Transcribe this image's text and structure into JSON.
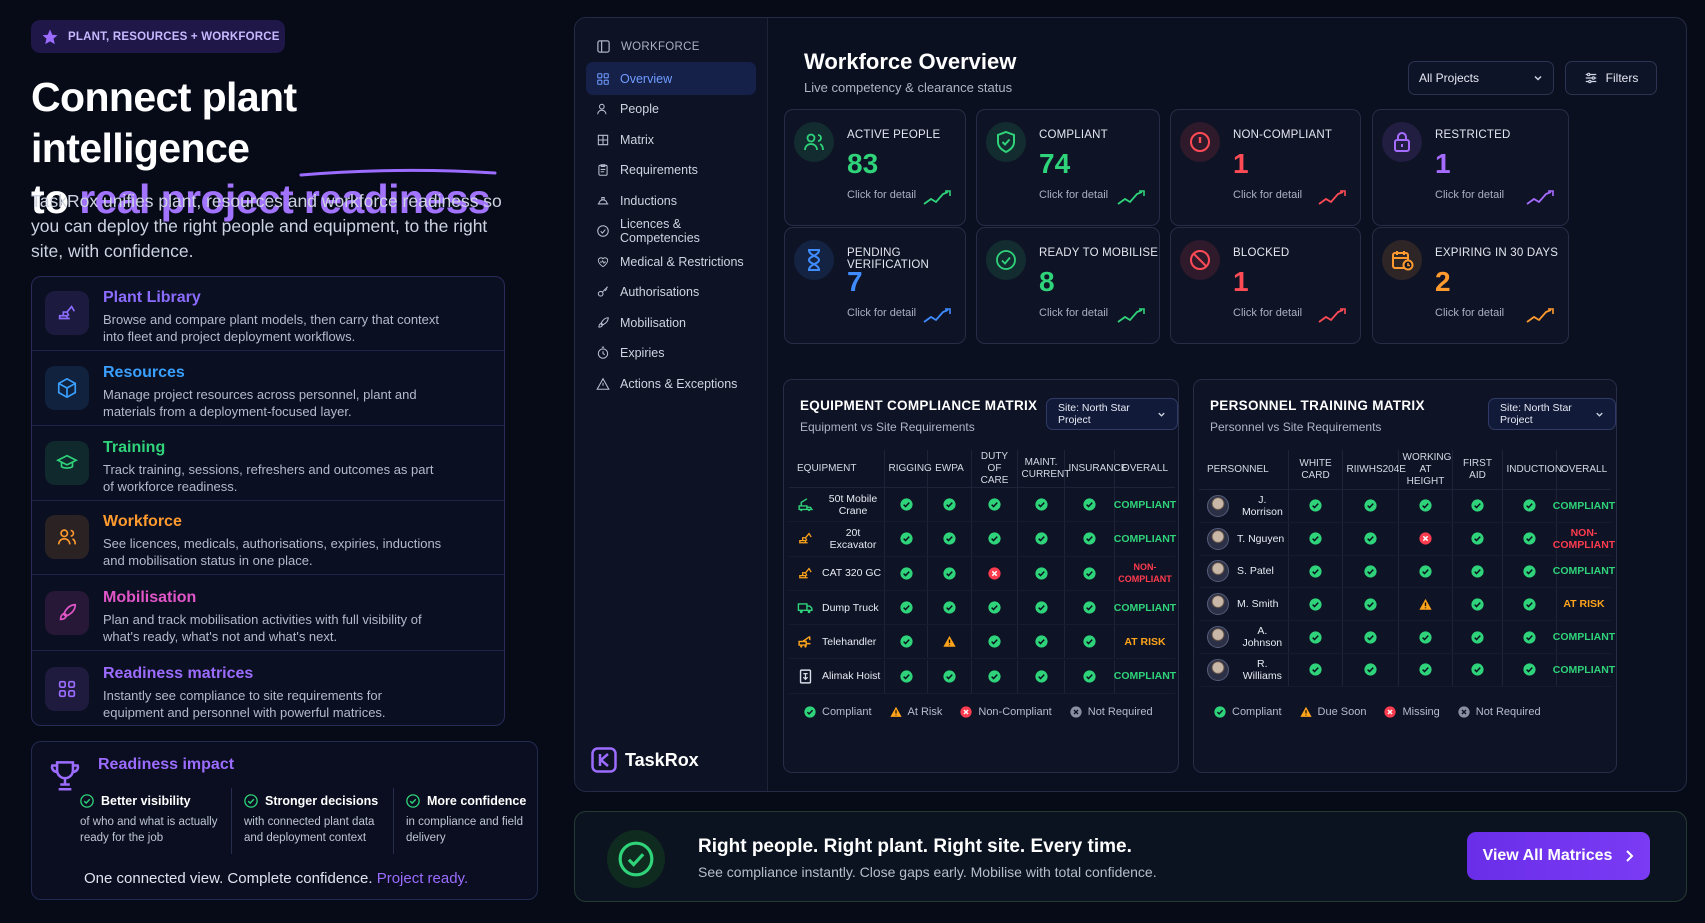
{
  "hero": {
    "badge": "PLANT, RESOURCES + WORKFORCE",
    "title_line1": "Connect plant intelligence",
    "title_line2_prefix": "to ",
    "title_line2_highlight": "real project readiness",
    "lede": "TaskRox unifies plant, resources and workforce readiness so you can deploy the right people and equipment, to the right site, with confidence."
  },
  "features": [
    {
      "title": "Plant Library",
      "desc": "Browse and compare plant models, then carry that context into fleet and project deployment workflows.",
      "color": "#8b6cff",
      "icon": "excavator-icon"
    },
    {
      "title": "Resources",
      "desc": "Manage project resources across personnel, plant and materials from a deployment-focused layer.",
      "color": "#3aa0ff",
      "icon": "cube-icon"
    },
    {
      "title": "Training",
      "desc": "Track training, sessions, refreshers and outcomes as part of workforce readiness.",
      "color": "#2fd37a",
      "icon": "graduation-cap-icon"
    },
    {
      "title": "Workforce",
      "desc": "See licences, medicals, authorisations, expiries, inductions and mobilisation status in one place.",
      "color": "#ff9a2e",
      "icon": "users-icon"
    },
    {
      "title": "Mobilisation",
      "desc": "Plan and track mobilisation activities with full visibility of what's ready, what's not and what's next.",
      "color": "#e056c8",
      "icon": "rocket-icon"
    },
    {
      "title": "Readiness matrices",
      "desc": "Instantly see compliance to site requirements for equipment and personnel with powerful matrices.",
      "color": "#9b6cff",
      "icon": "grid-icon"
    }
  ],
  "impact": {
    "title": "Readiness impact",
    "items": [
      {
        "title": "Better visibility",
        "desc": "of who and what is actually ready for the job"
      },
      {
        "title": "Stronger decisions",
        "desc": "with connected plant data and deployment context"
      },
      {
        "title": "More confidence",
        "desc": "in compliance and field delivery"
      }
    ],
    "footer_prefix": "One connected view. Complete confidence. ",
    "footer_highlight": "Project ready."
  },
  "sidebar": {
    "section": "WORKFORCE",
    "items": [
      {
        "label": "Overview",
        "icon": "dashboard-icon"
      },
      {
        "label": "People",
        "icon": "people-icon"
      },
      {
        "label": "Matrix",
        "icon": "matrix-icon"
      },
      {
        "label": "Requirements",
        "icon": "clipboard-icon"
      },
      {
        "label": "Inductions",
        "icon": "hardhat-icon"
      },
      {
        "label": "Licences & Competencies",
        "icon": "check-circle-icon"
      },
      {
        "label": "Medical & Restrictions",
        "icon": "heart-icon"
      },
      {
        "label": "Authorisations",
        "icon": "key-icon"
      },
      {
        "label": "Mobilisation",
        "icon": "rocket-icon"
      },
      {
        "label": "Expiries",
        "icon": "timer-icon"
      },
      {
        "label": "Actions & Exceptions",
        "icon": "warning-icon"
      }
    ],
    "brand": "TaskRox"
  },
  "header": {
    "title": "Workforce Overview",
    "subtitle": "Live competency & clearance status",
    "project_select": "All Projects",
    "filters_label": "Filters"
  },
  "kpis": [
    {
      "label": "ACTIVE PEOPLE",
      "value": "83",
      "hint": "Click for detail",
      "color": "#2fd37a",
      "icon": "users-icon"
    },
    {
      "label": "COMPLIANT",
      "value": "74",
      "hint": "Click for detail",
      "color": "#2fd37a",
      "icon": "shield-check-icon"
    },
    {
      "label": "NON-COMPLIANT",
      "value": "1",
      "hint": "Click for detail",
      "color": "#ff4b55",
      "icon": "alert-circle-icon"
    },
    {
      "label": "RESTRICTED",
      "value": "1",
      "hint": "Click for detail",
      "color": "#a66cff",
      "icon": "lock-icon"
    },
    {
      "label": "PENDING VERIFICATION",
      "value": "7",
      "hint": "Click for detail",
      "color": "#3f8cff",
      "icon": "hourglass-icon"
    },
    {
      "label": "READY TO MOBILISE",
      "value": "8",
      "hint": "Click for detail",
      "color": "#2fd37a",
      "icon": "check-circle-icon"
    },
    {
      "label": "BLOCKED",
      "value": "1",
      "hint": "Click for detail",
      "color": "#ff4b55",
      "icon": "blocked-icon"
    },
    {
      "label": "EXPIRING IN 30 DAYS",
      "value": "2",
      "hint": "Click for detail",
      "color": "#ff9a2e",
      "icon": "calendar-clock-icon"
    }
  ],
  "equipment_matrix": {
    "title": "EQUIPMENT COMPLIANCE MATRIX",
    "subtitle": "Equipment vs Site Requirements",
    "site": "Site: North Star Project",
    "columns": [
      "EQUIPMENT",
      "RIGGING",
      "EWPA",
      "DUTY OF CARE",
      "MAINT. CURRENT",
      "INSURANCE",
      "OVERALL"
    ],
    "rows": [
      {
        "name": "50t Mobile Crane",
        "icon": "crane-icon",
        "cells": [
          "ok",
          "ok",
          "ok",
          "ok",
          "ok"
        ],
        "overall": "COMPLIANT",
        "status": "ok"
      },
      {
        "name": "20t Excavator",
        "icon": "excavator-icon",
        "cells": [
          "ok",
          "ok",
          "ok",
          "ok",
          "ok"
        ],
        "overall": "COMPLIANT",
        "status": "ok"
      },
      {
        "name": "CAT 320 GC",
        "icon": "excavator-icon",
        "cells": [
          "ok",
          "ok",
          "fail",
          "ok",
          "ok"
        ],
        "overall": "NON-COMPLIANT",
        "status": "fail"
      },
      {
        "name": "Dump Truck",
        "icon": "truck-icon",
        "cells": [
          "ok",
          "ok",
          "ok",
          "ok",
          "ok"
        ],
        "overall": "COMPLIANT",
        "status": "ok"
      },
      {
        "name": "Telehandler",
        "icon": "telehandler-icon",
        "cells": [
          "ok",
          "warn",
          "ok",
          "ok",
          "ok"
        ],
        "overall": "AT RISK",
        "status": "warn"
      },
      {
        "name": "Alimak Hoist",
        "icon": "hoist-icon",
        "cells": [
          "ok",
          "ok",
          "ok",
          "ok",
          "ok"
        ],
        "overall": "COMPLIANT",
        "status": "ok"
      }
    ],
    "legend": [
      "Compliant",
      "At Risk",
      "Non-Compliant",
      "Not Required"
    ]
  },
  "personnel_matrix": {
    "title": "PERSONNEL TRAINING MATRIX",
    "subtitle": "Personnel vs Site Requirements",
    "site": "Site: North Star Project",
    "columns": [
      "PERSONNEL",
      "WHITE CARD",
      "RIIWHS204E",
      "WORKING AT HEIGHT",
      "FIRST AID",
      "INDUCTION",
      "OVERALL"
    ],
    "rows": [
      {
        "name": "J. Morrison",
        "cells": [
          "ok",
          "ok",
          "ok",
          "ok",
          "ok"
        ],
        "overall": "COMPLIANT",
        "status": "ok"
      },
      {
        "name": "T. Nguyen",
        "cells": [
          "ok",
          "ok",
          "fail",
          "ok",
          "ok"
        ],
        "overall": "NON-COMPLIANT",
        "status": "fail"
      },
      {
        "name": "S. Patel",
        "cells": [
          "ok",
          "ok",
          "ok",
          "ok",
          "ok"
        ],
        "overall": "COMPLIANT",
        "status": "ok"
      },
      {
        "name": "M. Smith",
        "cells": [
          "ok",
          "ok",
          "warn",
          "ok",
          "ok"
        ],
        "overall": "AT RISK",
        "status": "warn"
      },
      {
        "name": "A. Johnson",
        "cells": [
          "ok",
          "ok",
          "ok",
          "ok",
          "ok"
        ],
        "overall": "COMPLIANT",
        "status": "ok"
      },
      {
        "name": "R. Williams",
        "cells": [
          "ok",
          "ok",
          "ok",
          "ok",
          "ok"
        ],
        "overall": "COMPLIANT",
        "status": "ok"
      }
    ],
    "legend": [
      "Compliant",
      "Due Soon",
      "Missing",
      "Not Required"
    ]
  },
  "banner": {
    "title": "Right people. Right plant. Right site. Every time.",
    "subtitle": "See compliance instantly. Close gaps early. Mobilise with total confidence.",
    "button": "View All Matrices"
  },
  "colors": {
    "ok": "#2fd37a",
    "warn": "#ffa41b",
    "fail": "#ff3b4e",
    "accent": "#8b5cf6",
    "na": "#8a90a2"
  }
}
